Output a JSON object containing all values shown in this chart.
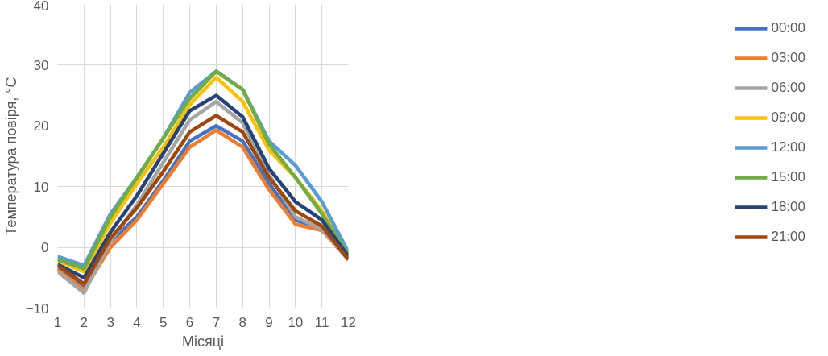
{
  "chart_data": {
    "type": "line",
    "xlabel": "Місяці",
    "ylabel": "Температура повіря, °C",
    "x": [
      1,
      2,
      3,
      4,
      5,
      6,
      7,
      8,
      9,
      10,
      11,
      12
    ],
    "xlim": [
      1,
      12
    ],
    "xticks": [
      1,
      2,
      3,
      4,
      5,
      6,
      7,
      8,
      9,
      10,
      11,
      12
    ],
    "ylim": [
      -10,
      40
    ],
    "yticks": [
      -10,
      0,
      10,
      20,
      30,
      40
    ],
    "grid": true,
    "legend": "right",
    "marker": "none",
    "line_style": "solid",
    "series": [
      {
        "name": "00:00",
        "color": "#4472c4",
        "values": [
          -3.5,
          -6.5,
          1,
          5,
          11,
          17.5,
          20,
          17.5,
          10.5,
          4.5,
          3,
          -2
        ]
      },
      {
        "name": "03:00",
        "color": "#ed7d31",
        "values": [
          -3.7,
          -7,
          0,
          4.5,
          10.5,
          16.5,
          19.3,
          16.5,
          9.5,
          3.8,
          2.8,
          -2
        ]
      },
      {
        "name": "06:00",
        "color": "#a5a5a5",
        "values": [
          -4,
          -7.5,
          1,
          7,
          14,
          21,
          24,
          20.5,
          12,
          5,
          3,
          -2
        ]
      },
      {
        "name": "09:00",
        "color": "#ffc000",
        "values": [
          -2.2,
          -4,
          4,
          10.5,
          16.5,
          23.5,
          28,
          24,
          16,
          11.5,
          6,
          -1.2
        ]
      },
      {
        "name": "12:00",
        "color": "#5b9bd5",
        "values": [
          -1.5,
          -3,
          5.5,
          11.5,
          18,
          25.5,
          29,
          26,
          17.5,
          13.5,
          7.5,
          -0.8
        ]
      },
      {
        "name": "15:00",
        "color": "#70ad47",
        "values": [
          -2,
          -3.5,
          5,
          11.5,
          18,
          24.5,
          29,
          26,
          17,
          11.5,
          5.5,
          -1.2
        ]
      },
      {
        "name": "18:00",
        "color": "#264478",
        "values": [
          -2.8,
          -5,
          2.5,
          8.5,
          15.5,
          22.5,
          25,
          21.5,
          13,
          7.5,
          4.5,
          -1.5
        ]
      },
      {
        "name": "21:00",
        "color": "#9e480e",
        "values": [
          -3,
          -6,
          1.5,
          6.5,
          12.5,
          19,
          21.7,
          19,
          11.5,
          6,
          3.5,
          -2
        ]
      }
    ]
  }
}
